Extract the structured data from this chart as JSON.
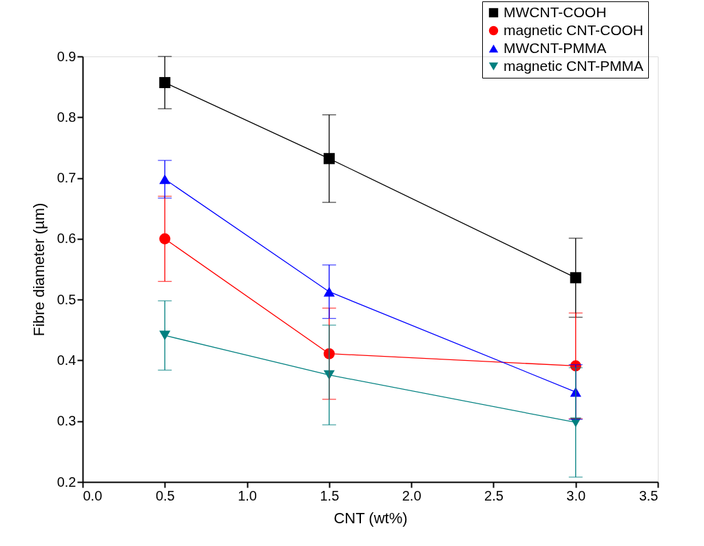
{
  "chart_data": {
    "type": "line",
    "xlabel": "CNT (wt%)",
    "ylabel": "Fibre diameter (µm)",
    "x": [
      0.5,
      1.5,
      3.0
    ],
    "xlim": [
      0,
      3.5
    ],
    "xticks": [
      {
        "value": 0,
        "label": "0.0"
      },
      {
        "value": 0.5,
        "label": "0.5"
      },
      {
        "value": 1,
        "label": "1.0"
      },
      {
        "value": 1.5,
        "label": "1.5"
      },
      {
        "value": 2,
        "label": "2.0"
      },
      {
        "value": 2.5,
        "label": "2.5"
      },
      {
        "value": 3,
        "label": "3.0"
      },
      {
        "value": 3.5,
        "label": "3.5"
      }
    ],
    "ylim": [
      0.2,
      0.9
    ],
    "yticks": [
      0.2,
      0.3,
      0.4,
      0.5,
      0.6,
      0.7,
      0.8,
      0.9
    ],
    "series": [
      {
        "name": "MWCNT-COOH",
        "color": "#000000",
        "marker": "square",
        "values": [
          0.857,
          0.732,
          0.536
        ],
        "errors": [
          0.043,
          0.072,
          0.065
        ]
      },
      {
        "name": "magnetic CNT-COOH",
        "color": "#ff0000",
        "marker": "circle",
        "values": [
          0.6,
          0.411,
          0.391
        ],
        "errors": [
          0.07,
          0.075,
          0.087
        ]
      },
      {
        "name": "MWCNT-PMMA",
        "color": "#0000ff",
        "marker": "triangle",
        "values": [
          0.698,
          0.513,
          0.348
        ],
        "errors": [
          0.031,
          0.044,
          0.045
        ]
      },
      {
        "name": "magnetic CNT-PMMA",
        "color": "#008080",
        "marker": "triangle-down",
        "values": [
          0.441,
          0.376,
          0.298
        ],
        "errors": [
          0.057,
          0.082,
          0.09
        ]
      }
    ],
    "legend": "top right",
    "grid": false,
    "line_style": "solid"
  }
}
